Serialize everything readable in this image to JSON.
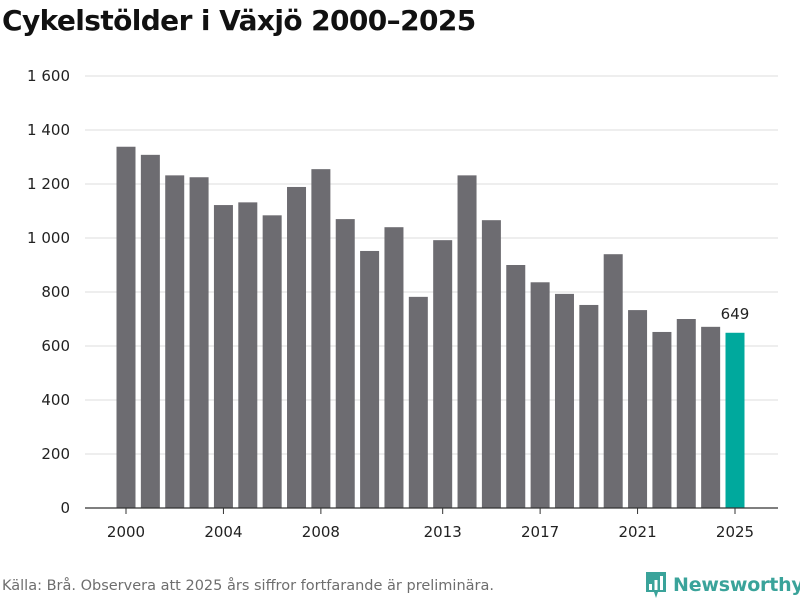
{
  "title": "Cykelstölder i Växjö 2000–2025",
  "footer": {
    "source": "Källa: Brå. Observera att 2025 års siffror fortfarande är preliminära.",
    "brand": "Newsworthy"
  },
  "colors": {
    "bar": "#6d6c71",
    "highlight": "#00a99d",
    "grid": "#dcdcdc",
    "axis": "#333333",
    "brand": "#3aa39a"
  },
  "chart_data": {
    "type": "bar",
    "title": "Cykelstölder i Växjö 2000–2025",
    "xlabel": "",
    "ylabel": "",
    "ylim": [
      0,
      1600
    ],
    "yticks": [
      0,
      200,
      400,
      600,
      800,
      1000,
      1200,
      1400,
      1600
    ],
    "ytick_labels": [
      "0",
      "200",
      "400",
      "600",
      "800",
      "1 000",
      "1 200",
      "1 400",
      "1 600"
    ],
    "xtick_labels": [
      "2000",
      "2004",
      "2008",
      "2013",
      "2017",
      "2021",
      "2025"
    ],
    "grid": true,
    "legend": "none",
    "categories": [
      "2000",
      "2001",
      "2002",
      "2003",
      "2004",
      "2005",
      "2006",
      "2007",
      "2008",
      "2009",
      "2010",
      "2011",
      "2012",
      "2013",
      "2014",
      "2015",
      "2016",
      "2017",
      "2018",
      "2019",
      "2020",
      "2021",
      "2022",
      "2023",
      "2024",
      "2025"
    ],
    "values": [
      1338,
      1308,
      1232,
      1225,
      1122,
      1132,
      1084,
      1189,
      1255,
      1070,
      952,
      1040,
      782,
      992,
      1232,
      1066,
      900,
      836,
      793,
      752,
      940,
      733,
      652,
      700,
      671,
      649
    ],
    "highlight_index": 25,
    "data_labels": [
      {
        "index": 25,
        "text": "649"
      }
    ]
  }
}
